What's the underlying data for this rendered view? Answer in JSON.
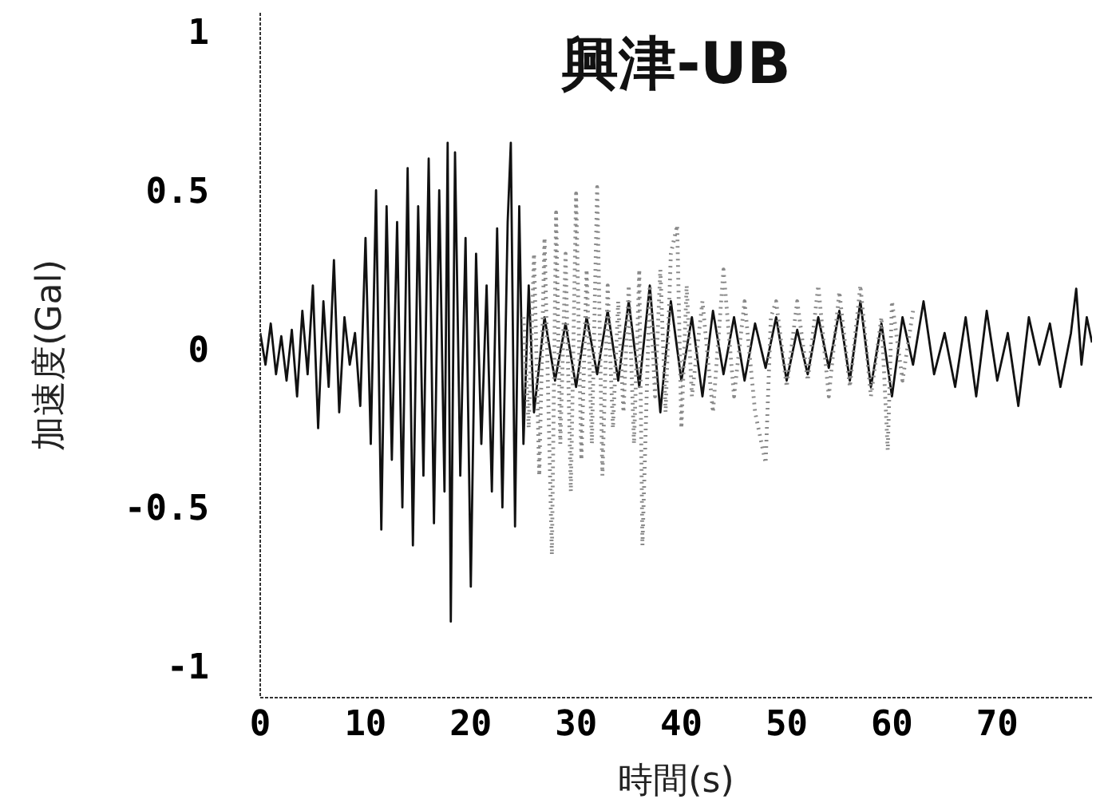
{
  "chart_data": {
    "type": "line",
    "title": "興津-UB",
    "xlabel": "時間(s)",
    "ylabel": "加速度(Gal)",
    "xlim": [
      0,
      79
    ],
    "xticks": [
      0,
      10,
      20,
      30,
      40,
      50,
      60,
      70
    ],
    "ylim": [
      -1.1,
      1.06
    ],
    "yticks": [
      -1,
      -0.5,
      0,
      0.5,
      1
    ],
    "marker": "none",
    "series": [
      {
        "color": "#111111",
        "line_style": "solid",
        "x": [
          0,
          0.5,
          1,
          1.5,
          2,
          2.5,
          3,
          3.5,
          4,
          4.5,
          5,
          5.5,
          6,
          6.5,
          7,
          7.5,
          8,
          8.5,
          9,
          9.5,
          10,
          10.5,
          11,
          11.5,
          12,
          12.5,
          13,
          13.5,
          14,
          14.5,
          15,
          15.5,
          16,
          16.5,
          17,
          17.5,
          17.8,
          18.1,
          18.5,
          19,
          19.5,
          20,
          20.5,
          21,
          21.5,
          22,
          22.5,
          23,
          23.5,
          23.8,
          24.2,
          24.6,
          25,
          25.5,
          26,
          27,
          28,
          29,
          30,
          31,
          32,
          33,
          34,
          35,
          36,
          37,
          38,
          39,
          40,
          41,
          42,
          43,
          44,
          45,
          46,
          47,
          48,
          49,
          50,
          51,
          52,
          53,
          54,
          55,
          56,
          57,
          58,
          59,
          60,
          61,
          62,
          63,
          64,
          65,
          66,
          67,
          68,
          69,
          70,
          71,
          72,
          73,
          74,
          75,
          76,
          77,
          77.5,
          78,
          78.5,
          79
        ],
        "values": [
          0.05,
          -0.05,
          0.08,
          -0.08,
          0.04,
          -0.1,
          0.06,
          -0.15,
          0.12,
          -0.08,
          0.2,
          -0.25,
          0.15,
          -0.12,
          0.28,
          -0.2,
          0.1,
          -0.05,
          0.05,
          -0.18,
          0.35,
          -0.3,
          0.5,
          -0.57,
          0.45,
          -0.35,
          0.4,
          -0.5,
          0.57,
          -0.62,
          0.45,
          -0.4,
          0.6,
          -0.55,
          0.5,
          -0.45,
          0.65,
          -0.86,
          0.62,
          -0.4,
          0.35,
          -0.75,
          0.3,
          -0.3,
          0.2,
          -0.45,
          0.38,
          -0.5,
          0.4,
          0.65,
          -0.56,
          0.45,
          -0.3,
          0.2,
          -0.2,
          0.1,
          -0.1,
          0.08,
          -0.12,
          0.1,
          -0.08,
          0.12,
          -0.1,
          0.15,
          -0.12,
          0.2,
          -0.2,
          0.15,
          -0.1,
          0.1,
          -0.15,
          0.12,
          -0.08,
          0.1,
          -0.1,
          0.08,
          -0.06,
          0.1,
          -0.1,
          0.06,
          -0.08,
          0.1,
          -0.06,
          0.12,
          -0.1,
          0.15,
          -0.12,
          0.08,
          -0.15,
          0.1,
          -0.05,
          0.15,
          -0.08,
          0.05,
          -0.12,
          0.1,
          -0.15,
          0.12,
          -0.1,
          0.05,
          -0.18,
          0.1,
          -0.05,
          0.08,
          -0.12,
          0.05,
          0.19,
          -0.05,
          0.1,
          0.02
        ]
      },
      {
        "color": "#8a8a8a",
        "line_style": "dotted",
        "x": [
          25,
          25.5,
          26,
          26.5,
          27,
          27.7,
          28.1,
          28.5,
          29,
          29.5,
          30,
          30.5,
          31,
          31.5,
          32,
          32.5,
          33,
          33.5,
          34,
          34.5,
          35,
          35.5,
          36,
          36.3,
          37,
          37.5,
          38,
          38.5,
          39,
          39.6,
          40,
          40.5,
          41,
          42,
          43,
          44,
          45,
          46,
          47,
          48,
          48.5,
          49,
          50,
          51,
          52,
          53,
          54,
          55,
          56,
          57,
          58,
          59,
          59.6,
          60,
          61,
          62
        ],
        "values": [
          0.1,
          -0.25,
          0.3,
          -0.4,
          0.35,
          -0.65,
          0.43,
          -0.3,
          0.3,
          -0.45,
          0.49,
          -0.35,
          0.25,
          -0.3,
          0.51,
          -0.4,
          0.2,
          -0.25,
          0.15,
          -0.2,
          0.2,
          -0.3,
          0.25,
          -0.62,
          0.2,
          -0.15,
          0.25,
          -0.2,
          0.3,
          0.39,
          -0.25,
          0.2,
          -0.15,
          0.15,
          -0.2,
          0.25,
          -0.15,
          0.15,
          -0.2,
          -0.36,
          0.1,
          0.15,
          -0.12,
          0.15,
          -0.1,
          0.2,
          -0.15,
          0.18,
          -0.12,
          0.2,
          -0.15,
          0.1,
          -0.32,
          0.15,
          -0.1,
          0.12
        ]
      }
    ]
  }
}
